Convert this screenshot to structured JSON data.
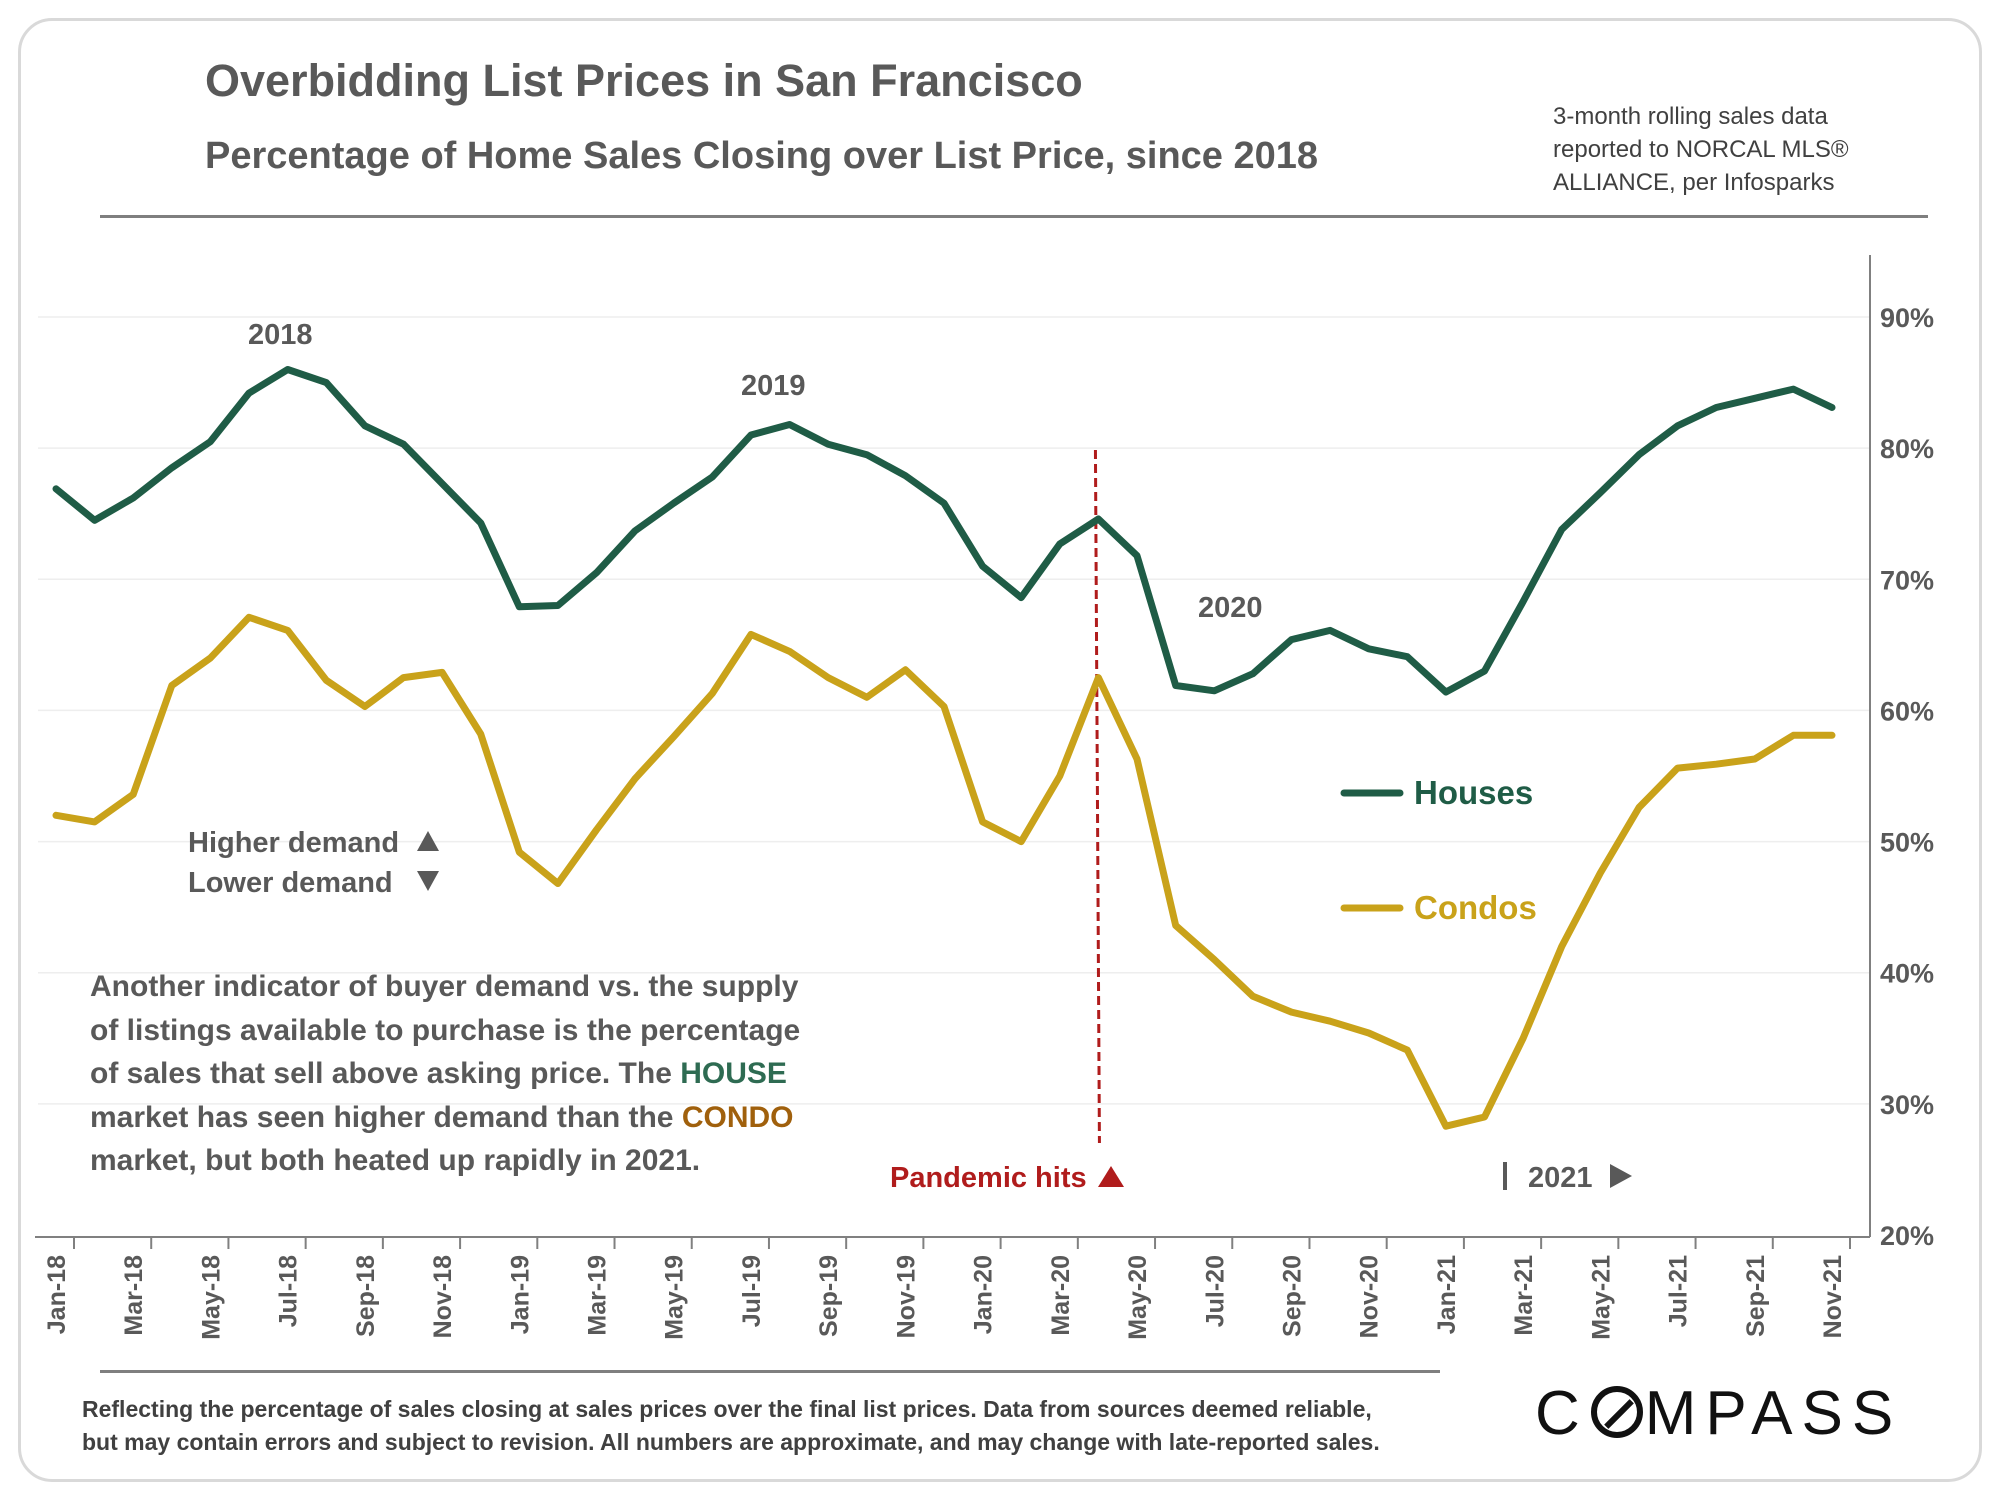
{
  "header": {
    "title": "Overbidding List Prices in San Francisco",
    "subtitle": "Percentage of  Home Sales Closing over List Price, since 2018",
    "source_lines": [
      "3-month rolling sales data",
      "reported to NORCAL MLS®",
      "ALLIANCE, per Infosparks"
    ]
  },
  "annotations": {
    "higher_demand": "Higher demand",
    "lower_demand": "Lower demand",
    "pandemic": "Pandemic hits",
    "year_2018": "2018",
    "year_2019": "2019",
    "year_2020": "2020",
    "year_2021": "2021",
    "paragraph": {
      "l1": "Another indicator of buyer demand vs. the supply",
      "l2": "of listings available to purchase is the percentage",
      "l3a": "of sales that sell above asking price. The ",
      "l3b": "HOUSE",
      "l4a": "market has seen higher demand than the ",
      "l4b": "CONDO",
      "l5": "market, but both heated up rapidly in 2021."
    }
  },
  "footer": {
    "line1": "Reflecting the percentage of sales closing at sales prices over the final list prices. Data from sources deemed reliable,",
    "line2": "but may contain errors and subject to revision. All numbers are approximate, and may change with late-reported sales.",
    "logo_text_1": "C",
    "logo_text_2": "MPASS"
  },
  "colors": {
    "houses": "#1f5c46",
    "condos": "#c9a21a",
    "pandemic": "#b01c1c",
    "text": "#595959",
    "grid": "#eeeeee"
  },
  "chart_data": {
    "type": "line",
    "title": "Overbidding List Prices in San Francisco",
    "subtitle": "Percentage of  Home Sales Closing over List Price, since 2018",
    "x": [
      "Jan-18",
      "Feb-18",
      "Mar-18",
      "Apr-18",
      "May-18",
      "Jun-18",
      "Jul-18",
      "Aug-18",
      "Sep-18",
      "Oct-18",
      "Nov-18",
      "Dec-18",
      "Jan-19",
      "Feb-19",
      "Mar-19",
      "Apr-19",
      "May-19",
      "Jun-19",
      "Jul-19",
      "Aug-19",
      "Sep-19",
      "Oct-19",
      "Nov-19",
      "Dec-19",
      "Jan-20",
      "Feb-20",
      "Mar-20",
      "Apr-20",
      "May-20",
      "Jun-20",
      "Jul-20",
      "Aug-20",
      "Sep-20",
      "Oct-20",
      "Nov-20",
      "Dec-20",
      "Jan-21",
      "Feb-21",
      "Mar-21",
      "Apr-21",
      "May-21",
      "Jun-21",
      "Jul-21",
      "Aug-21",
      "Sep-21",
      "Oct-21",
      "Nov-21"
    ],
    "tick_labels": [
      "Jan-18",
      "Mar-18",
      "May-18",
      "Jul-18",
      "Sep-18",
      "Nov-18",
      "Jan-19",
      "Mar-19",
      "May-19",
      "Jul-19",
      "Sep-19",
      "Nov-19",
      "Jan-20",
      "Mar-20",
      "May-20",
      "Jul-20",
      "Sep-20",
      "Nov-20",
      "Jan-21",
      "Mar-21",
      "May-21",
      "Jul-21",
      "Sep-21",
      "Nov-21"
    ],
    "y_ticks": [
      "20%",
      "30%",
      "40%",
      "50%",
      "60%",
      "70%",
      "80%",
      "90%"
    ],
    "ylim": [
      20,
      95
    ],
    "y_unit": "%",
    "grid": true,
    "legend_position": "center-right",
    "series": [
      {
        "name": "Houses",
        "values": [
          76.9,
          74.5,
          76.2,
          78.5,
          80.5,
          84.2,
          86.0,
          85.0,
          81.7,
          80.3,
          77.3,
          74.3,
          67.9,
          68.0,
          70.5,
          73.7,
          75.8,
          77.8,
          81.0,
          81.8,
          80.3,
          79.5,
          77.9,
          75.8,
          71.0,
          68.6,
          72.7,
          74.6,
          71.8,
          61.9,
          61.5,
          62.8,
          65.4,
          66.1,
          64.7,
          64.1,
          61.4,
          63.0,
          68.3,
          73.8,
          76.6,
          79.5,
          81.7,
          83.1,
          83.8,
          84.5,
          83.1
        ]
      },
      {
        "name": "Condos",
        "values": [
          52.0,
          51.5,
          53.6,
          61.9,
          64.0,
          67.1,
          66.1,
          62.3,
          60.3,
          62.5,
          62.9,
          58.2,
          49.2,
          46.8,
          50.9,
          54.8,
          58.0,
          61.3,
          65.8,
          64.5,
          62.5,
          61.0,
          63.1,
          60.3,
          51.5,
          50.0,
          55.0,
          62.5,
          56.3,
          43.6,
          41.0,
          38.2,
          37.0,
          36.3,
          35.4,
          34.1,
          28.3,
          29.0,
          35.0,
          42.0,
          47.6,
          52.6,
          55.6,
          55.9,
          56.3,
          58.1,
          58.1
        ]
      }
    ],
    "annotation_pandemic_x": "Apr-20"
  }
}
